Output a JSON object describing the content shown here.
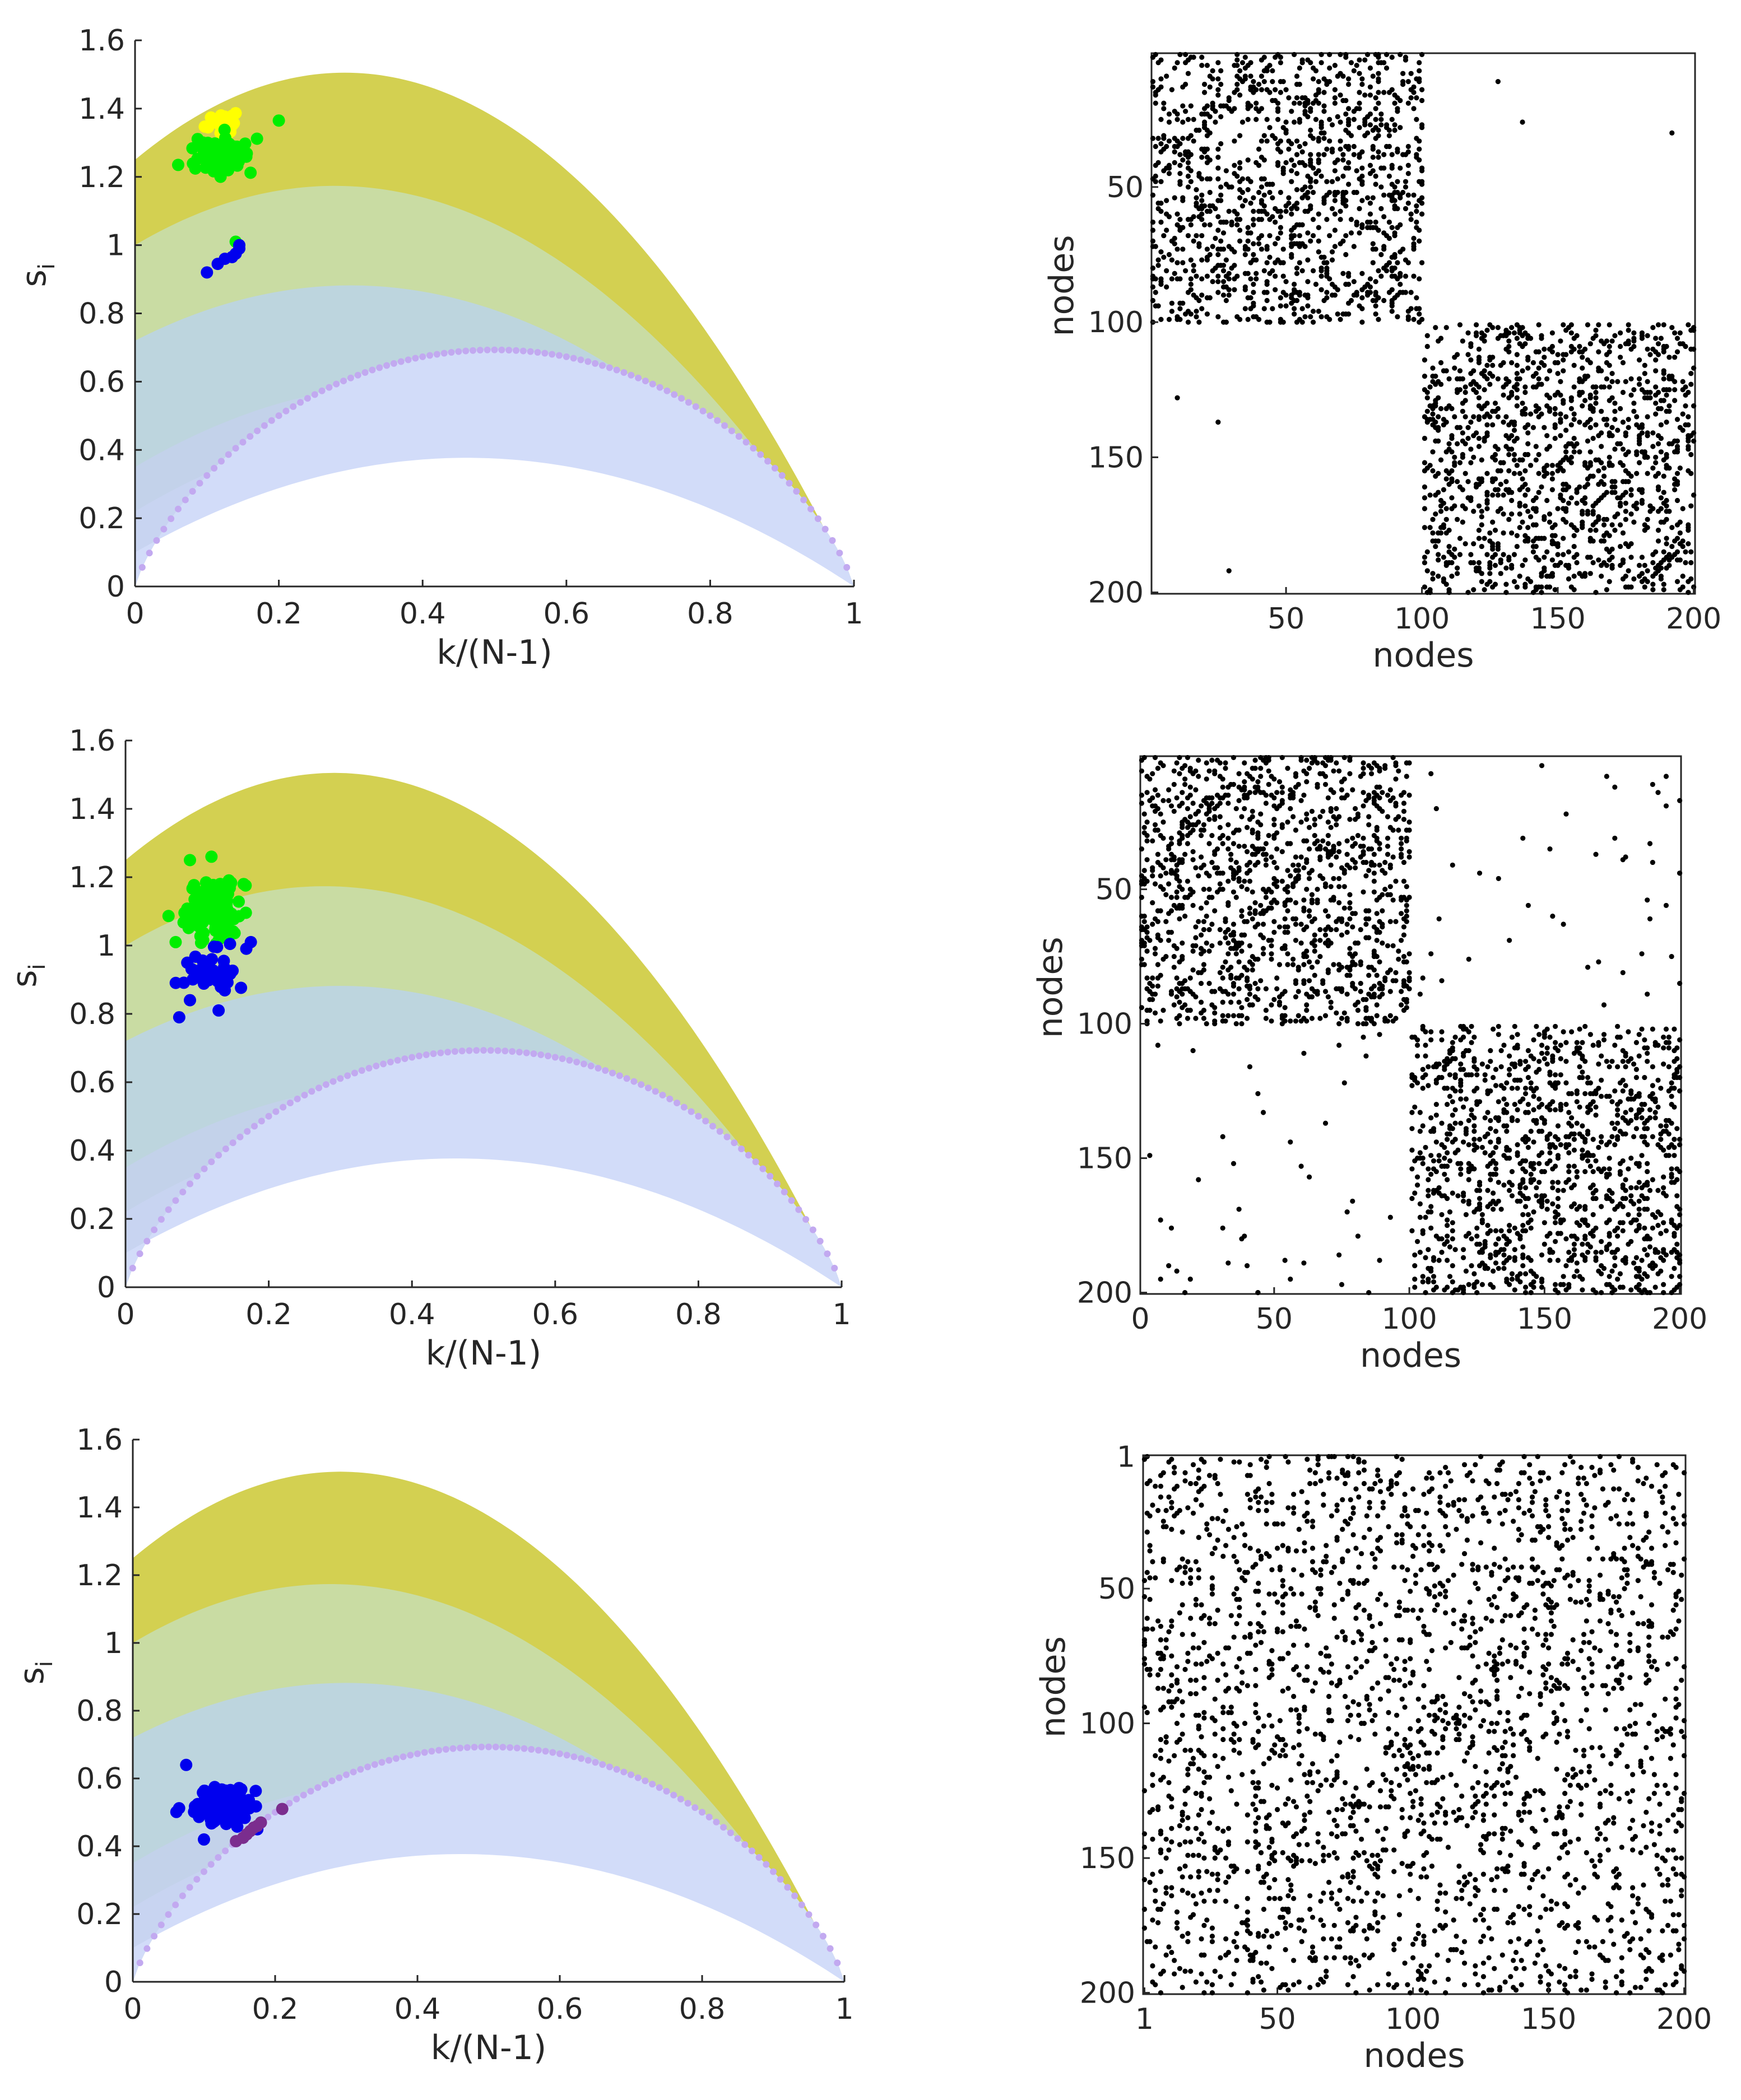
{
  "figure": {
    "description_panels": 6
  },
  "colors": {
    "band_olive": "#d3d051",
    "band_lightgreen": "#c9dca3",
    "band_bluegrey": "#bdd5de",
    "band_periwinkle1": "#c3d2ea",
    "band_periwinkle2": "#c8d4f1",
    "band_periwinkle3": "#d2dcf9",
    "baseline_dots": "#c2a9f0",
    "yellow": "#ffff00",
    "green": "#00ee00",
    "blue": "#0000ee",
    "purple": "#7b2d8e",
    "matrix_dot": "#000000"
  },
  "chart_data": [
    {
      "id": "scatter-top",
      "type": "scatter",
      "xlabel": "k/(N-1)",
      "ylabel": "s",
      "ylabel_sub": "i",
      "xlim": [
        0,
        1
      ],
      "ylim": [
        0,
        1.6
      ],
      "xticks": [
        "0",
        "0.2",
        "0.4",
        "0.6",
        "0.8",
        "1"
      ],
      "yticks": [
        "0",
        "0.2",
        "0.4",
        "0.6",
        "0.8",
        "1",
        "1.2",
        "1.4",
        "1.6"
      ],
      "series": [
        {
          "name": "yellow",
          "color": "#ffff00",
          "center": [
            0.12,
            1.36
          ],
          "spread": [
            0.03,
            0.025
          ],
          "count": 22,
          "extra": [
            [
              0.105,
              1.255
            ]
          ]
        },
        {
          "name": "green",
          "color": "#00ee00",
          "center": [
            0.115,
            1.27
          ],
          "spread": [
            0.035,
            0.05
          ],
          "count": 90,
          "extra": [
            [
              0.14,
              1.01
            ],
            [
              0.2,
              1.365
            ],
            [
              0.06,
              1.235
            ]
          ]
        },
        {
          "name": "blue",
          "color": "#0000ee",
          "points": [
            [
              0.1,
              0.92
            ],
            [
              0.115,
              0.945
            ],
            [
              0.125,
              0.96
            ],
            [
              0.14,
              0.975
            ],
            [
              0.145,
              0.99
            ],
            [
              0.145,
              1.0
            ],
            [
              0.135,
              0.965
            ]
          ]
        }
      ]
    },
    {
      "id": "matrix-top",
      "type": "heatmap",
      "xlabel": "nodes",
      "ylabel": "nodes",
      "xlim": [
        1,
        200
      ],
      "ylim": [
        1,
        200
      ],
      "xticks": [
        "50",
        "100",
        "150",
        "200"
      ],
      "yticks": [
        "50",
        "100",
        "150",
        "200"
      ],
      "blocks": [
        [
          1,
          100
        ],
        [
          101,
          200
        ]
      ],
      "within_density": 0.5,
      "between_points": [
        [
          128,
          11
        ],
        [
          137,
          26
        ],
        [
          192,
          30
        ],
        [
          10,
          128
        ],
        [
          25,
          137
        ],
        [
          29,
          192
        ]
      ]
    },
    {
      "id": "scatter-middle",
      "type": "scatter",
      "xlabel": "k/(N-1)",
      "ylabel": "s",
      "ylabel_sub": "i",
      "xlim": [
        0,
        1
      ],
      "ylim": [
        0,
        1.6
      ],
      "xticks": [
        "0",
        "0.2",
        "0.4",
        "0.6",
        "0.8",
        "1"
      ],
      "yticks": [
        "0",
        "0.2",
        "0.4",
        "0.6",
        "0.8",
        "1",
        "1.2",
        "1.4",
        "1.6"
      ],
      "series": [
        {
          "name": "green",
          "color": "#00ee00",
          "center": [
            0.12,
            1.1
          ],
          "spread": [
            0.03,
            0.07
          ],
          "count": 110,
          "extra": [
            [
              0.07,
              1.01
            ],
            [
              0.165,
              1.18
            ],
            [
              0.09,
              1.25
            ],
            [
              0.12,
              1.26
            ]
          ]
        },
        {
          "name": "blue",
          "color": "#0000ee",
          "center": [
            0.12,
            0.93
          ],
          "spread": [
            0.035,
            0.05
          ],
          "count": 40,
          "extra": [
            [
              0.075,
              0.79
            ],
            [
              0.13,
              0.81
            ],
            [
              0.175,
              1.01
            ],
            [
              0.09,
              0.84
            ]
          ]
        }
      ]
    },
    {
      "id": "matrix-middle",
      "type": "heatmap",
      "xlabel": "nodes",
      "ylabel": "nodes",
      "xlim": [
        1,
        200
      ],
      "ylim": [
        1,
        200
      ],
      "xticks": [
        "0",
        "50",
        "100",
        "150",
        "200"
      ],
      "yticks": [
        "50",
        "100",
        "150",
        "200"
      ],
      "blocks": [
        [
          1,
          100
        ],
        [
          101,
          200
        ]
      ],
      "within_density": 0.5,
      "between_count": 45
    },
    {
      "id": "scatter-bottom",
      "type": "scatter",
      "xlabel": "k/(N-1)",
      "ylabel": "s",
      "ylabel_sub": "i",
      "xlim": [
        0,
        1
      ],
      "ylim": [
        0,
        1.6
      ],
      "xticks": [
        "0",
        "0.2",
        "0.4",
        "0.6",
        "0.8",
        "1"
      ],
      "yticks": [
        "0",
        "0.2",
        "0.4",
        "0.6",
        "0.8",
        "1",
        "1.2",
        "1.4",
        "1.6"
      ],
      "series": [
        {
          "name": "blue",
          "color": "#0000ee",
          "center": [
            0.125,
            0.52
          ],
          "spread": [
            0.03,
            0.04
          ],
          "count": 140,
          "extra": [
            [
              0.075,
              0.64
            ],
            [
              0.1,
              0.42
            ],
            [
              0.175,
              0.45
            ]
          ]
        },
        {
          "name": "purple",
          "color": "#7b2d8e",
          "points": [
            [
              0.145,
              0.415
            ],
            [
              0.155,
              0.425
            ],
            [
              0.16,
              0.435
            ],
            [
              0.165,
              0.445
            ],
            [
              0.17,
              0.455
            ],
            [
              0.175,
              0.46
            ],
            [
              0.18,
              0.47
            ],
            [
              0.21,
              0.51
            ]
          ]
        }
      ]
    },
    {
      "id": "matrix-bottom",
      "type": "heatmap",
      "xlabel": "nodes",
      "ylabel": "nodes",
      "xlim": [
        1,
        200
      ],
      "ylim": [
        1,
        200
      ],
      "xticks": [
        "1",
        "50",
        "100",
        "150",
        "200"
      ],
      "yticks": [
        "1",
        "50",
        "100",
        "150",
        "200"
      ],
      "blocks": [],
      "uniform_density": 0.12
    }
  ]
}
